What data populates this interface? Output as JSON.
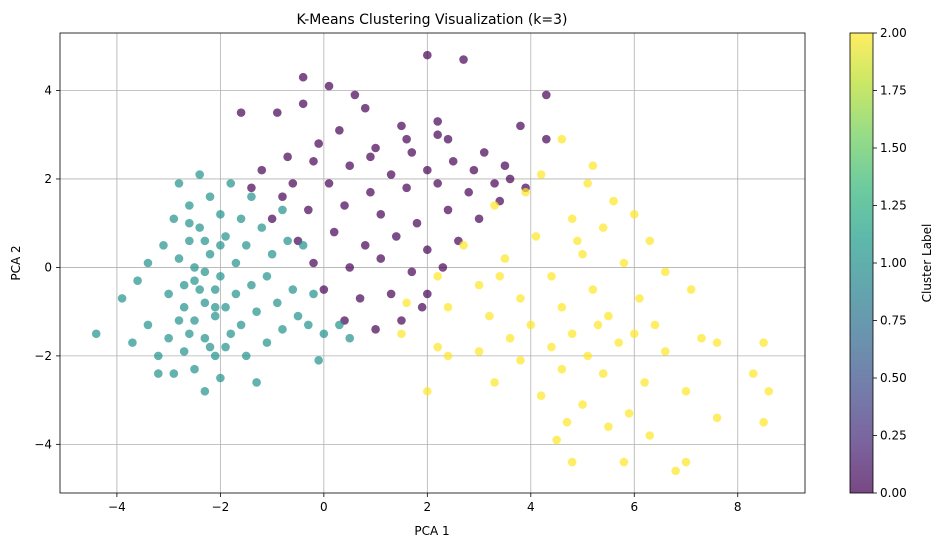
{
  "chart_data": {
    "type": "scatter",
    "title": "K-Means Clustering Visualization (k=3)",
    "xlabel": "PCA 1",
    "ylabel": "PCA 2",
    "xlim": [
      -5.1,
      9.3
    ],
    "ylim": [
      -5.1,
      5.3
    ],
    "xticks": [
      -4,
      -2,
      0,
      2,
      4,
      6,
      8
    ],
    "xtick_labels": [
      "−4",
      "−2",
      "0",
      "2",
      "4",
      "6",
      "8"
    ],
    "yticks": [
      -4,
      -2,
      0,
      2,
      4
    ],
    "ytick_labels": [
      "−4",
      "−2",
      "0",
      "2",
      "4"
    ],
    "grid": true,
    "point_alpha": 0.7,
    "colormap": "viridis",
    "colorbar": {
      "label": "Cluster Label",
      "range": [
        0,
        2
      ],
      "ticks": [
        0.0,
        0.25,
        0.5,
        0.75,
        1.0,
        1.25,
        1.5,
        1.75,
        2.0
      ],
      "tick_labels": [
        "0.00",
        "0.25",
        "0.50",
        "0.75",
        "1.00",
        "1.25",
        "1.50",
        "1.75",
        "2.00"
      ],
      "stops": [
        "#440154",
        "#482878",
        "#3e4989",
        "#31688e",
        "#26828e",
        "#1f9e89",
        "#35b779",
        "#6ece58",
        "#b5de2b",
        "#fde725"
      ]
    },
    "series": [
      {
        "cluster": 0,
        "color": "#440154",
        "points": [
          [
            2.0,
            4.8
          ],
          [
            2.7,
            4.7
          ],
          [
            -1.6,
            3.5
          ],
          [
            -0.4,
            3.7
          ],
          [
            -0.4,
            4.3
          ],
          [
            0.1,
            4.1
          ],
          [
            0.6,
            3.9
          ],
          [
            4.3,
            3.9
          ],
          [
            -0.9,
            3.5
          ],
          [
            2.2,
            3.3
          ],
          [
            0.8,
            3.6
          ],
          [
            1.5,
            3.2
          ],
          [
            3.8,
            3.2
          ],
          [
            4.3,
            2.9
          ],
          [
            -0.7,
            2.5
          ],
          [
            1.0,
            2.7
          ],
          [
            2.4,
            2.9
          ],
          [
            3.1,
            2.6
          ],
          [
            -1.2,
            2.2
          ],
          [
            -0.2,
            2.4
          ],
          [
            0.5,
            2.3
          ],
          [
            1.3,
            2.1
          ],
          [
            1.7,
            2.6
          ],
          [
            2.5,
            2.4
          ],
          [
            2.9,
            2.2
          ],
          [
            3.5,
            2.3
          ],
          [
            3.9,
            1.8
          ],
          [
            -1.4,
            1.8
          ],
          [
            -0.8,
            1.6
          ],
          [
            0.1,
            1.9
          ],
          [
            0.9,
            1.7
          ],
          [
            1.6,
            1.8
          ],
          [
            2.2,
            1.9
          ],
          [
            2.8,
            1.7
          ],
          [
            3.3,
            1.9
          ],
          [
            -1.0,
            1.1
          ],
          [
            -0.3,
            1.3
          ],
          [
            0.4,
            1.4
          ],
          [
            1.1,
            1.2
          ],
          [
            1.8,
            1.0
          ],
          [
            2.4,
            1.3
          ],
          [
            3.0,
            1.1
          ],
          [
            -0.5,
            0.6
          ],
          [
            0.2,
            0.8
          ],
          [
            0.8,
            0.5
          ],
          [
            1.4,
            0.7
          ],
          [
            2.0,
            0.4
          ],
          [
            2.6,
            0.6
          ],
          [
            -0.2,
            0.1
          ],
          [
            0.5,
            0.0
          ],
          [
            1.1,
            0.2
          ],
          [
            1.7,
            -0.1
          ],
          [
            2.3,
            0.0
          ],
          [
            0.0,
            -0.5
          ],
          [
            0.7,
            -0.7
          ],
          [
            1.3,
            -0.6
          ],
          [
            1.9,
            -0.9
          ],
          [
            0.4,
            -1.2
          ],
          [
            1.0,
            -1.4
          ],
          [
            1.5,
            -1.2
          ],
          [
            2.0,
            -0.6
          ],
          [
            -0.6,
            1.9
          ],
          [
            0.9,
            2.5
          ],
          [
            2.0,
            2.2
          ],
          [
            3.4,
            1.5
          ],
          [
            2.2,
            3.0
          ],
          [
            0.3,
            3.1
          ],
          [
            -0.1,
            2.8
          ],
          [
            1.6,
            2.9
          ],
          [
            3.6,
            2.0
          ]
        ]
      },
      {
        "cluster": 1,
        "color": "#21918c",
        "points": [
          [
            -4.4,
            -1.5
          ],
          [
            -3.9,
            -0.7
          ],
          [
            -3.7,
            -1.7
          ],
          [
            -3.6,
            -0.3
          ],
          [
            -3.4,
            0.1
          ],
          [
            -3.4,
            -1.3
          ],
          [
            -3.2,
            -2.0
          ],
          [
            -3.2,
            -2.4
          ],
          [
            -3.1,
            0.5
          ],
          [
            -3.0,
            -0.6
          ],
          [
            -3.0,
            -1.6
          ],
          [
            -2.9,
            1.1
          ],
          [
            -2.9,
            -2.4
          ],
          [
            -2.8,
            1.9
          ],
          [
            -2.8,
            0.2
          ],
          [
            -2.7,
            -0.9
          ],
          [
            -2.7,
            -1.9
          ],
          [
            -2.6,
            1.4
          ],
          [
            -2.6,
            0.6
          ],
          [
            -2.5,
            -0.3
          ],
          [
            -2.5,
            -1.2
          ],
          [
            -2.5,
            -2.3
          ],
          [
            -2.4,
            2.1
          ],
          [
            -2.4,
            0.9
          ],
          [
            -2.3,
            -0.1
          ],
          [
            -2.3,
            -0.8
          ],
          [
            -2.3,
            -1.6
          ],
          [
            -2.3,
            -2.8
          ],
          [
            -2.2,
            1.6
          ],
          [
            -2.2,
            0.3
          ],
          [
            -2.1,
            -0.5
          ],
          [
            -2.1,
            -1.1
          ],
          [
            -2.1,
            -2.0
          ],
          [
            -2.0,
            1.2
          ],
          [
            -2.0,
            -0.2
          ],
          [
            -2.0,
            -2.5
          ],
          [
            -1.9,
            0.7
          ],
          [
            -1.9,
            -0.9
          ],
          [
            -1.8,
            -1.5
          ],
          [
            -1.8,
            1.9
          ],
          [
            -1.7,
            0.1
          ],
          [
            -1.7,
            -0.6
          ],
          [
            -1.6,
            1.1
          ],
          [
            -1.6,
            -1.3
          ],
          [
            -1.5,
            0.5
          ],
          [
            -1.5,
            -2.0
          ],
          [
            -1.4,
            -0.4
          ],
          [
            -1.4,
            1.6
          ],
          [
            -1.3,
            -1.0
          ],
          [
            -1.3,
            -2.6
          ],
          [
            -1.2,
            0.9
          ],
          [
            -1.1,
            -0.2
          ],
          [
            -1.1,
            -1.7
          ],
          [
            -1.0,
            0.3
          ],
          [
            -0.9,
            -0.8
          ],
          [
            -0.8,
            1.3
          ],
          [
            -0.8,
            -1.4
          ],
          [
            -0.7,
            0.6
          ],
          [
            -0.6,
            -0.5
          ],
          [
            -0.5,
            -1.1
          ],
          [
            -0.4,
            0.5
          ],
          [
            -0.3,
            -1.3
          ],
          [
            -0.2,
            -0.6
          ],
          [
            0.0,
            -1.5
          ],
          [
            -0.1,
            -2.1
          ],
          [
            0.3,
            -1.3
          ],
          [
            0.5,
            -1.6
          ],
          [
            -2.6,
            -1.5
          ],
          [
            -2.4,
            -0.5
          ],
          [
            -2.2,
            -1.8
          ],
          [
            -2.0,
            0.5
          ],
          [
            -2.5,
            0.0
          ],
          [
            -2.7,
            -0.4
          ],
          [
            -2.1,
            -0.9
          ],
          [
            -1.9,
            -1.8
          ],
          [
            -2.8,
            -1.2
          ],
          [
            -2.3,
            0.6
          ],
          [
            -2.6,
            1.0
          ]
        ]
      },
      {
        "cluster": 2,
        "color": "#fde725",
        "points": [
          [
            4.6,
            2.9
          ],
          [
            5.2,
            2.3
          ],
          [
            4.2,
            2.1
          ],
          [
            5.1,
            1.9
          ],
          [
            5.6,
            1.5
          ],
          [
            6.0,
            1.2
          ],
          [
            3.9,
            1.7
          ],
          [
            4.8,
            1.1
          ],
          [
            5.4,
            0.9
          ],
          [
            6.3,
            0.6
          ],
          [
            3.3,
            1.4
          ],
          [
            4.1,
            0.7
          ],
          [
            5.0,
            0.3
          ],
          [
            5.8,
            0.1
          ],
          [
            6.6,
            -0.1
          ],
          [
            2.7,
            0.5
          ],
          [
            3.5,
            0.2
          ],
          [
            4.4,
            -0.2
          ],
          [
            5.2,
            -0.5
          ],
          [
            6.1,
            -0.7
          ],
          [
            7.1,
            -0.5
          ],
          [
            2.2,
            -0.2
          ],
          [
            3.0,
            -0.4
          ],
          [
            3.8,
            -0.7
          ],
          [
            4.6,
            -0.9
          ],
          [
            5.5,
            -1.1
          ],
          [
            6.4,
            -1.3
          ],
          [
            7.3,
            -1.6
          ],
          [
            1.6,
            -0.8
          ],
          [
            2.4,
            -0.9
          ],
          [
            3.2,
            -1.1
          ],
          [
            4.0,
            -1.3
          ],
          [
            4.8,
            -1.5
          ],
          [
            5.7,
            -1.7
          ],
          [
            6.6,
            -1.9
          ],
          [
            7.6,
            -1.7
          ],
          [
            8.5,
            -1.7
          ],
          [
            1.5,
            -1.5
          ],
          [
            2.2,
            -1.8
          ],
          [
            3.0,
            -1.9
          ],
          [
            3.8,
            -2.1
          ],
          [
            4.6,
            -2.3
          ],
          [
            5.4,
            -2.4
          ],
          [
            6.2,
            -2.6
          ],
          [
            7.0,
            -2.8
          ],
          [
            8.3,
            -2.4
          ],
          [
            8.6,
            -2.8
          ],
          [
            2.0,
            -2.8
          ],
          [
            3.3,
            -2.6
          ],
          [
            4.2,
            -2.9
          ],
          [
            5.0,
            -3.1
          ],
          [
            5.9,
            -3.3
          ],
          [
            7.6,
            -3.4
          ],
          [
            8.5,
            -3.5
          ],
          [
            4.7,
            -3.5
          ],
          [
            5.5,
            -3.6
          ],
          [
            6.3,
            -3.8
          ],
          [
            4.5,
            -3.9
          ],
          [
            4.8,
            -4.4
          ],
          [
            5.8,
            -4.4
          ],
          [
            6.8,
            -4.6
          ],
          [
            7.0,
            -4.4
          ],
          [
            2.4,
            -2.0
          ],
          [
            3.6,
            -1.6
          ],
          [
            4.4,
            -1.8
          ],
          [
            5.1,
            -2.0
          ],
          [
            6.0,
            -1.5
          ],
          [
            3.4,
            -0.2
          ],
          [
            4.9,
            0.6
          ],
          [
            5.3,
            -1.3
          ]
        ]
      }
    ]
  }
}
